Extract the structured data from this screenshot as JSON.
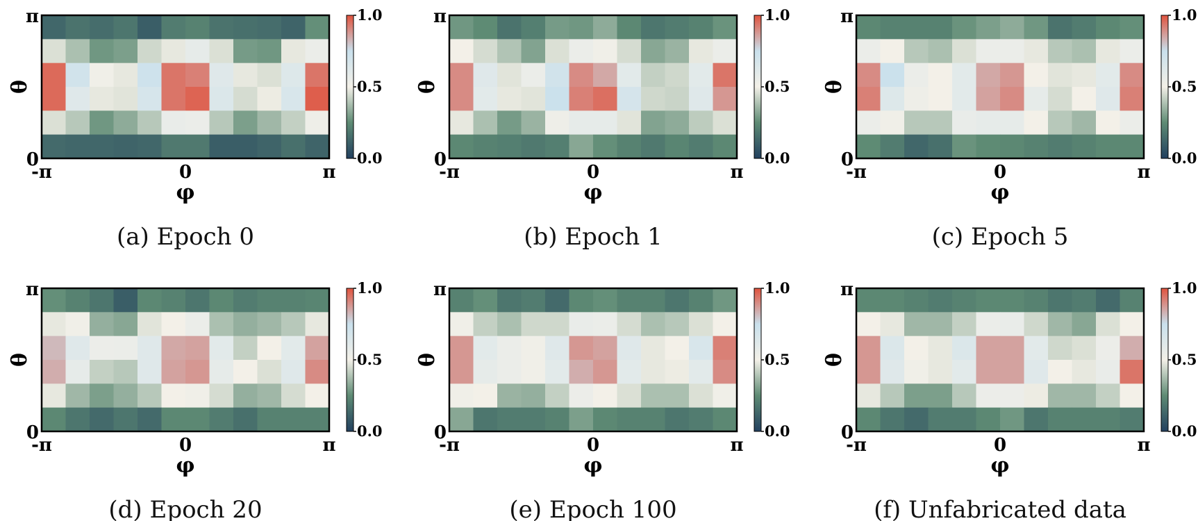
{
  "figure": {
    "colormap": [
      "#22405f",
      "#5e8b74",
      "#f3f0e8",
      "#c9e0ec",
      "#e0533e"
    ],
    "chart_data": [
      {
        "type": "heatmap",
        "caption": "(a) Epoch 0",
        "xlabel": "φ",
        "ylabel": "θ",
        "x_ticks": [
          "-π",
          "0",
          "π"
        ],
        "y_ticks": [
          "0",
          "π"
        ],
        "xlim": [
          "-π",
          "π"
        ],
        "ylim": [
          "0",
          "π"
        ],
        "colorbar": {
          "min": 0.0,
          "max": 1.0,
          "ticks": [
            "0.0",
            "0.5",
            "1.0"
          ]
        },
        "values": [
          [
            0.13,
            0.17,
            0.15,
            0.18,
            0.1,
            0.2,
            0.22,
            0.17,
            0.16,
            0.15,
            0.12,
            0.26
          ],
          [
            0.46,
            0.38,
            0.28,
            0.3,
            0.44,
            0.48,
            0.58,
            0.46,
            0.29,
            0.28,
            0.48,
            0.55
          ],
          [
            0.96,
            0.7,
            0.52,
            0.48,
            0.72,
            0.94,
            0.92,
            0.62,
            0.48,
            0.46,
            0.63,
            0.94
          ],
          [
            0.96,
            0.62,
            0.48,
            0.47,
            0.67,
            0.94,
            0.97,
            0.64,
            0.45,
            0.49,
            0.66,
            0.98
          ],
          [
            0.46,
            0.4,
            0.28,
            0.33,
            0.4,
            0.56,
            0.55,
            0.4,
            0.3,
            0.36,
            0.42,
            0.53
          ],
          [
            0.14,
            0.13,
            0.13,
            0.12,
            0.13,
            0.19,
            0.19,
            0.1,
            0.1,
            0.12,
            0.16,
            0.12
          ]
        ]
      },
      {
        "type": "heatmap",
        "caption": "(b) Epoch 1",
        "xlabel": "φ",
        "ylabel": "θ",
        "x_ticks": [
          "-π",
          "0",
          "π"
        ],
        "y_ticks": [
          "0",
          "π"
        ],
        "xlim": [
          "-π",
          "π"
        ],
        "ylim": [
          "0",
          "π"
        ],
        "colorbar": {
          "min": 0.0,
          "max": 1.0,
          "ticks": [
            "0.0",
            "0.5",
            "1.0"
          ]
        },
        "values": [
          [
            0.28,
            0.25,
            0.17,
            0.21,
            0.29,
            0.28,
            0.33,
            0.24,
            0.18,
            0.2,
            0.22,
            0.27
          ],
          [
            0.5,
            0.45,
            0.39,
            0.31,
            0.46,
            0.55,
            0.52,
            0.45,
            0.32,
            0.35,
            0.48,
            0.55
          ],
          [
            0.9,
            0.62,
            0.47,
            0.55,
            0.7,
            0.9,
            0.85,
            0.6,
            0.42,
            0.44,
            0.6,
            0.94
          ],
          [
            0.9,
            0.6,
            0.48,
            0.47,
            0.74,
            0.92,
            0.95,
            0.68,
            0.44,
            0.43,
            0.62,
            0.88
          ],
          [
            0.48,
            0.38,
            0.29,
            0.35,
            0.53,
            0.58,
            0.58,
            0.47,
            0.31,
            0.33,
            0.41,
            0.46
          ],
          [
            0.24,
            0.22,
            0.21,
            0.19,
            0.21,
            0.32,
            0.26,
            0.22,
            0.19,
            0.23,
            0.2,
            0.24
          ]
        ]
      },
      {
        "type": "heatmap",
        "caption": "(c) Epoch 5",
        "xlabel": "φ",
        "ylabel": "θ",
        "x_ticks": [
          "-π",
          "0",
          "π"
        ],
        "y_ticks": [
          "0",
          "π"
        ],
        "xlim": [
          "-π",
          "π"
        ],
        "ylim": [
          "0",
          "π"
        ],
        "colorbar": {
          "min": 0.0,
          "max": 1.0,
          "ticks": [
            "0.0",
            "0.5",
            "1.0"
          ]
        },
        "values": [
          [
            0.24,
            0.22,
            0.22,
            0.22,
            0.27,
            0.3,
            0.33,
            0.28,
            0.17,
            0.2,
            0.24,
            0.26
          ],
          [
            0.55,
            0.5,
            0.4,
            0.38,
            0.46,
            0.55,
            0.55,
            0.48,
            0.4,
            0.38,
            0.48,
            0.55
          ],
          [
            0.9,
            0.74,
            0.55,
            0.5,
            0.6,
            0.85,
            0.88,
            0.5,
            0.47,
            0.48,
            0.6,
            0.9
          ],
          [
            0.92,
            0.63,
            0.53,
            0.5,
            0.6,
            0.86,
            0.9,
            0.58,
            0.45,
            0.5,
            0.62,
            0.92
          ],
          [
            0.55,
            0.52,
            0.4,
            0.4,
            0.56,
            0.58,
            0.58,
            0.5,
            0.4,
            0.36,
            0.5,
            0.55
          ],
          [
            0.25,
            0.2,
            0.13,
            0.16,
            0.27,
            0.25,
            0.24,
            0.22,
            0.2,
            0.22,
            0.24,
            0.24
          ]
        ]
      },
      {
        "type": "heatmap",
        "caption": "(d) Epoch 20",
        "xlabel": "φ",
        "ylabel": "θ",
        "x_ticks": [
          "-π",
          "0",
          "π"
        ],
        "y_ticks": [
          "0",
          "π"
        ],
        "xlim": [
          "-π",
          "π"
        ],
        "ylim": [
          "0",
          "π"
        ],
        "colorbar": {
          "min": 0.0,
          "max": 1.0,
          "ticks": [
            "0.0",
            "0.5",
            "1.0"
          ]
        },
        "values": [
          [
            0.26,
            0.22,
            0.18,
            0.1,
            0.24,
            0.22,
            0.18,
            0.24,
            0.2,
            0.22,
            0.22,
            0.23
          ],
          [
            0.48,
            0.52,
            0.34,
            0.32,
            0.47,
            0.5,
            0.55,
            0.38,
            0.34,
            0.36,
            0.4,
            0.48
          ],
          [
            0.82,
            0.62,
            0.54,
            0.55,
            0.62,
            0.85,
            0.86,
            0.6,
            0.42,
            0.5,
            0.6,
            0.86
          ],
          [
            0.84,
            0.58,
            0.42,
            0.4,
            0.62,
            0.86,
            0.88,
            0.58,
            0.5,
            0.46,
            0.62,
            0.9
          ],
          [
            0.48,
            0.36,
            0.3,
            0.34,
            0.4,
            0.5,
            0.52,
            0.45,
            0.34,
            0.36,
            0.45,
            0.5
          ],
          [
            0.24,
            0.18,
            0.14,
            0.18,
            0.14,
            0.24,
            0.24,
            0.2,
            0.16,
            0.22,
            0.22,
            0.22
          ]
        ]
      },
      {
        "type": "heatmap",
        "caption": "(e) Epoch 100",
        "xlabel": "φ",
        "ylabel": "θ",
        "x_ticks": [
          "-π",
          "0",
          "π"
        ],
        "y_ticks": [
          "0",
          "π"
        ],
        "xlim": [
          "-π",
          "π"
        ],
        "ylim": [
          "0",
          "π"
        ],
        "colorbar": {
          "min": 0.0,
          "max": 1.0,
          "ticks": [
            "0.0",
            "0.5",
            "1.0"
          ]
        },
        "values": [
          [
            0.22,
            0.26,
            0.18,
            0.2,
            0.14,
            0.24,
            0.26,
            0.22,
            0.22,
            0.18,
            0.22,
            0.28
          ],
          [
            0.52,
            0.42,
            0.38,
            0.44,
            0.44,
            0.56,
            0.55,
            0.45,
            0.38,
            0.4,
            0.46,
            0.5
          ],
          [
            0.88,
            0.6,
            0.55,
            0.52,
            0.62,
            0.88,
            0.86,
            0.62,
            0.48,
            0.5,
            0.66,
            0.92
          ],
          [
            0.88,
            0.58,
            0.55,
            0.52,
            0.6,
            0.84,
            0.88,
            0.6,
            0.48,
            0.49,
            0.6,
            0.9
          ],
          [
            0.52,
            0.5,
            0.35,
            0.34,
            0.42,
            0.54,
            0.5,
            0.46,
            0.38,
            0.38,
            0.46,
            0.52
          ],
          [
            0.32,
            0.18,
            0.2,
            0.2,
            0.22,
            0.3,
            0.24,
            0.22,
            0.22,
            0.18,
            0.2,
            0.24
          ]
        ]
      },
      {
        "type": "heatmap",
        "caption": "(f) Unfabricated data",
        "xlabel": "φ",
        "ylabel": "θ",
        "x_ticks": [
          "-π",
          "0",
          "π"
        ],
        "y_ticks": [
          "0",
          "π"
        ],
        "xlim": [
          "-π",
          "π"
        ],
        "ylim": [
          "0",
          "π"
        ],
        "colorbar": {
          "min": 0.0,
          "max": 1.0,
          "ticks": [
            "0.0",
            "0.5",
            "1.0"
          ]
        },
        "values": [
          [
            0.24,
            0.24,
            0.22,
            0.2,
            0.22,
            0.24,
            0.24,
            0.22,
            0.18,
            0.2,
            0.14,
            0.22
          ],
          [
            0.5,
            0.48,
            0.36,
            0.36,
            0.42,
            0.55,
            0.56,
            0.44,
            0.36,
            0.32,
            0.46,
            0.5
          ],
          [
            0.88,
            0.64,
            0.5,
            0.48,
            0.64,
            0.86,
            0.86,
            0.6,
            0.44,
            0.46,
            0.54,
            0.84
          ],
          [
            0.88,
            0.62,
            0.52,
            0.48,
            0.6,
            0.86,
            0.86,
            0.62,
            0.5,
            0.48,
            0.56,
            0.94
          ],
          [
            0.48,
            0.4,
            0.3,
            0.3,
            0.4,
            0.54,
            0.54,
            0.49,
            0.36,
            0.36,
            0.42,
            0.5
          ],
          [
            0.24,
            0.18,
            0.14,
            0.2,
            0.2,
            0.24,
            0.28,
            0.18,
            0.22,
            0.22,
            0.22,
            0.2
          ]
        ]
      }
    ]
  }
}
